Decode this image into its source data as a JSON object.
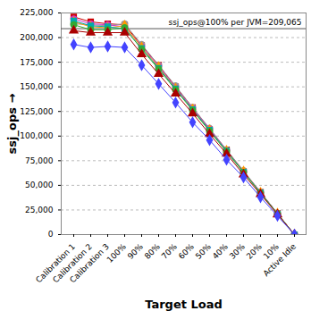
{
  "chart_data": {
    "type": "line",
    "x_label": "Target Load",
    "y_label": "ssj_ops",
    "categories": [
      "Calibration 1",
      "Calibration 2",
      "Calibration 3",
      "100%",
      "90%",
      "80%",
      "70%",
      "60%",
      "50%",
      "40%",
      "30%",
      "20%",
      "10%",
      "Active Idle"
    ],
    "series": [
      {
        "color": "#cc0000",
        "marker": "square",
        "values": [
          221000,
          216000,
          214000,
          213000,
          192000,
          172000,
          150000,
          129000,
          107000,
          86000,
          64000,
          43000,
          21500,
          0
        ]
      },
      {
        "color": "#999999",
        "marker": "circle",
        "values": [
          214000,
          213000,
          212000,
          214000,
          193000,
          172000,
          151000,
          129000,
          108000,
          86000,
          65000,
          43000,
          21500,
          0
        ]
      },
      {
        "color": "#cc33cc",
        "marker": "circle",
        "values": [
          219000,
          214000,
          213000,
          211000,
          191000,
          171000,
          149000,
          128000,
          107000,
          85500,
          64000,
          43000,
          21300,
          0
        ]
      },
      {
        "color": "#ff9900",
        "marker": "diamond",
        "values": [
          216000,
          211000,
          210000,
          212000,
          190000,
          170000,
          148000,
          127000,
          106000,
          85000,
          64000,
          42500,
          21200,
          0
        ]
      },
      {
        "color": "#00aaaa",
        "marker": "square",
        "values": [
          217000,
          212000,
          211000,
          209000,
          189000,
          169000,
          148000,
          127000,
          106000,
          85000,
          63500,
          42500,
          21100,
          0
        ]
      },
      {
        "color": "#33aa33",
        "marker": "circle",
        "values": [
          213000,
          208000,
          208000,
          210000,
          188000,
          168000,
          147000,
          126000,
          105000,
          84000,
          63000,
          42000,
          21000,
          0
        ]
      },
      {
        "color": "#aa0000",
        "marker": "triangle",
        "values": [
          207000,
          205000,
          205000,
          205000,
          183000,
          163000,
          143000,
          123000,
          102000,
          82000,
          61000,
          41000,
          20500,
          0
        ]
      },
      {
        "color": "#4444ff",
        "marker": "diamond",
        "values": [
          193000,
          190000,
          191000,
          190000,
          172000,
          153000,
          134000,
          114000,
          96000,
          76000,
          58000,
          38000,
          19000,
          0
        ]
      }
    ],
    "annotations": [
      {
        "text": "ssj_ops@100% per JVM=209,065",
        "y": 209065
      }
    ],
    "ylim": [
      0,
      225000
    ],
    "yticks": [
      0,
      {
        "value": 25000,
        "label": "25,000"
      },
      {
        "value": 50000,
        "label": "50,000"
      },
      {
        "value": 75000,
        "label": "75,000"
      },
      {
        "value": 100000,
        "label": "100,000"
      },
      {
        "value": 125000,
        "label": "125,000"
      },
      {
        "value": 150000,
        "label": "150,000"
      },
      {
        "value": 175000,
        "label": "175,000"
      },
      {
        "value": 200000,
        "label": "200,000"
      },
      {
        "value": 225000,
        "label": "225,000"
      }
    ],
    "grid": true
  }
}
